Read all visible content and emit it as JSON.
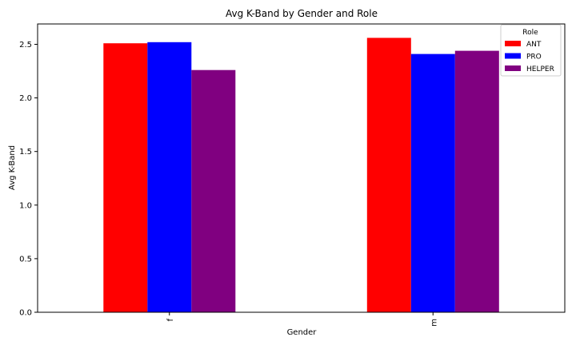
{
  "chart_data": {
    "type": "bar",
    "title": "Avg K-Band by Gender and Role",
    "xlabel": "Gender",
    "ylabel": "Avg K-Band",
    "categories": [
      "f",
      "m"
    ],
    "series": [
      {
        "name": "ANT",
        "color": "#ff0000",
        "values": [
          2.51,
          2.56
        ]
      },
      {
        "name": "PRO",
        "color": "#0000ff",
        "values": [
          2.52,
          2.41
        ]
      },
      {
        "name": "HELPER",
        "color": "#800080",
        "values": [
          2.26,
          2.44
        ]
      }
    ],
    "ylim": [
      0,
      2.69
    ],
    "yticks": [
      "0.0",
      "0.5",
      "1.0",
      "1.5",
      "2.0",
      "2.5"
    ],
    "legend": {
      "title": "Role",
      "placement": "top-right"
    },
    "grid": false
  }
}
